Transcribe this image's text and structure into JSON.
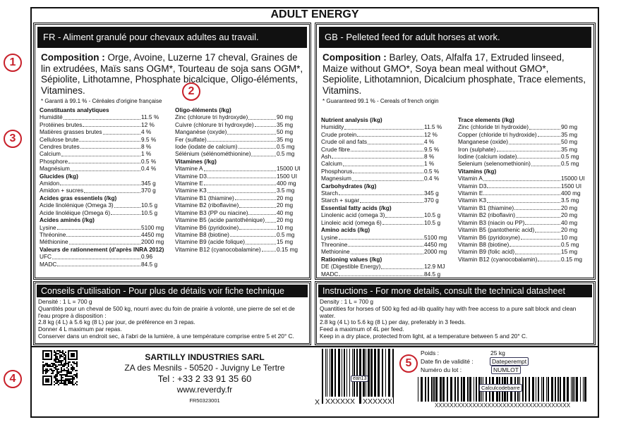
{
  "title": "ADULT ENERGY",
  "fr": {
    "header": "FR - Aliment granulé pour chevaux adultes au travail.",
    "composition_label": "Composition :",
    "composition_text": " Orge, Avoine, Luzerne 17 cheval, Graines de lin extrudées, Maïs sans OGM*, Tourteau de soja sans OGM*, Sépiolite, Lithotamne, Phosphate bicalcique, Oligo-éléments, Vitamines.",
    "footnote": "* Garanti à 99.1 % - Céréales d'origine française",
    "columns": [
      [
        {
          "title": "Constituants analytiques",
          "rows": [
            [
              "Humidité",
              "11.5 %"
            ],
            [
              "Protéines brutes",
              "12 %"
            ],
            [
              "Matières grasses brutes",
              "4 %"
            ],
            [
              "Cellulose brute",
              "9.5 %"
            ],
            [
              "Cendres brutes",
              "8 %"
            ],
            [
              "Calcium",
              "1 %"
            ],
            [
              "Phosphore",
              "0.5 %"
            ],
            [
              "Magnésium",
              "0.4 %"
            ]
          ]
        },
        {
          "title": "Glucides (/kg)",
          "rows": [
            [
              "Amidon",
              "345 g"
            ],
            [
              "Amidon + sucres",
              "370 g"
            ]
          ]
        },
        {
          "title": "Acides gras essentiels (/kg)",
          "rows": [
            [
              "Acide linolénique (Omega 3)",
              "10.5 g"
            ],
            [
              "Acide linoléique (Omega 6)",
              "10.5 g"
            ]
          ]
        },
        {
          "title": "Acides aminés (/kg)",
          "rows": [
            [
              "Lysine",
              "5100 mg"
            ],
            [
              "Thréonine",
              "4450 mg"
            ],
            [
              "Méthionine",
              "2000 mg"
            ]
          ]
        },
        {
          "title": "Valeurs de rationnement (d'après INRA 2012)",
          "rows": [
            [
              "UFC",
              "0.96"
            ],
            [
              "MADC",
              "84.5 g"
            ]
          ]
        }
      ],
      [
        {
          "title": "Oligo-éléments (/kg)",
          "rows": [
            [
              "Zinc (chlorure tri hydroxyde)",
              "90 mg"
            ],
            [
              "Cuivre (chlorure tri hydroxyde)",
              "35 mg"
            ],
            [
              "Manganèse (oxyde)",
              "50 mg"
            ],
            [
              "Fer (sulfate)",
              "35 mg"
            ],
            [
              "Iode (iodate de calcium)",
              "0.5 mg"
            ],
            [
              "Sélénium (sélénométhionine)",
              "0.5 mg"
            ]
          ]
        },
        {
          "title": "Vitamines (/kg)",
          "rows": [
            [
              "Vitamine A",
              "15000 UI"
            ],
            [
              "Vitamine D3",
              "1500 UI"
            ],
            [
              "Vitamine E",
              "400 mg"
            ],
            [
              "Vitamine K3",
              "3.5 mg"
            ],
            [
              "Vitamine B1 (thiamine)",
              "20 mg"
            ],
            [
              "Vitamine B2 (riboflavine)",
              "20 mg"
            ],
            [
              "Vitamine B3 (PP ou niacine)",
              "40 mg"
            ],
            [
              "Vitamine B5 (acide pantothénique)",
              "20 mg"
            ],
            [
              "Vitamine B6 (pyridoxine)",
              "10 mg"
            ],
            [
              "Vitamine B8 (biotine)",
              "0.5 mg"
            ],
            [
              "Vitamine B9 (acide folique)",
              "15 mg"
            ],
            [
              "Vitamine B12 (cyanocobalamine)",
              "0.15 mg"
            ]
          ]
        }
      ]
    ]
  },
  "gb": {
    "header": "GB - Pelleted feed for adult horses at work.",
    "composition_label": "Composition :",
    "composition_text": " Barley, Oats, Alfalfa 17, Extruded linseed, Maize without GMO*, Soya bean meal without GMO*, Sepiolite, Lithotamnion, Dicalcium phosphate, Trace elements, Vitamins.",
    "footnote": "* Guaranteed 99.1 % - Cereals of french origin",
    "columns": [
      [
        {
          "title": "Nutrient analysis (/kg)",
          "rows": [
            [
              "Humidity",
              "11.5 %"
            ],
            [
              "Crude protein",
              "12 %"
            ],
            [
              "Crude oil and fats",
              "4 %"
            ],
            [
              "Crude fibre",
              "9.5 %"
            ],
            [
              "Ash",
              "8 %"
            ],
            [
              "Calcium",
              "1 %"
            ],
            [
              "Phosphorus",
              "0.5 %"
            ],
            [
              "Magnesium",
              "0.4 %"
            ]
          ]
        },
        {
          "title": "Carbohydrates (/kg)",
          "rows": [
            [
              "Starch",
              "345 g"
            ],
            [
              "Starch + sugar",
              "370 g"
            ]
          ]
        },
        {
          "title": "Essential fatty acids (/kg)",
          "rows": [
            [
              "Linolenic acid (omega 3)",
              "10.5 g"
            ],
            [
              "Linoleic acid (omega 6)",
              "10.5 g"
            ]
          ]
        },
        {
          "title": "Amino acids (/kg)",
          "rows": [
            [
              "Lysine",
              "5100 mg"
            ],
            [
              "Threonine",
              "4450 mg"
            ],
            [
              "Methionine",
              "2000 mg"
            ]
          ]
        },
        {
          "title": "Rationing values (/kg)",
          "rows": [
            [
              "DE (Digestible Energy)",
              "12.9 MJ"
            ],
            [
              "MADC",
              "84.5 g"
            ]
          ]
        }
      ],
      [
        {
          "title": "Trace elements (/kg)",
          "rows": [
            [
              "Zinc (chloride tri hydroxide)",
              "90 mg"
            ],
            [
              "Copper (chloride tri hydroxide)",
              "35 mg"
            ],
            [
              "Manganese (oxide)",
              "50 mg"
            ],
            [
              "Iron (sulphate)",
              "35 mg"
            ],
            [
              "Iodine (calcium iodate)",
              "0.5 mg"
            ],
            [
              "Selenium (selenomethionin)",
              "0.5 mg"
            ]
          ]
        },
        {
          "title": "Vitamins (/kg)",
          "rows": [
            [
              "Vitamin A",
              "15000 UI"
            ],
            [
              "Vitamin D3",
              "1500 UI"
            ],
            [
              "Vitamin E",
              "400 mg"
            ],
            [
              "Vitamin K3",
              "3.5 mg"
            ],
            [
              "Vitamin B1 (thiamine)",
              "20 mg"
            ],
            [
              "Vitamin B2 (riboflavin)",
              "20 mg"
            ],
            [
              "Vitamin B3 (niacin ou PP)",
              "40 mg"
            ],
            [
              "Vitamin B5 (pantothenic acid)",
              "20 mg"
            ],
            [
              "Vitamin B6 (pyridoxyne)",
              "10 mg"
            ],
            [
              "Vitamin B8 (biotine)",
              "0.5 mg"
            ],
            [
              "Vitamin B9 (folic acid)",
              "15 mg"
            ],
            [
              "Vitamin B12 (cyanocobalamin)",
              "0.15 mg"
            ]
          ]
        }
      ]
    ]
  },
  "instructions_fr": {
    "header": "Conseils d'utilisation - Pour plus de détails voir fiche technique",
    "lines": [
      "Densité : 1 L = 700 g",
      "Quantités pour un cheval de 500 kg, nourri avec du foin de prairie à volonté, une pierre de sel et de l'eau propre à disposition :",
      "2.8 kg (4 L) à 5.6 kg (8 L) par jour, de préférence en 3 repas.",
      "Donner 4 L maximum par repas.",
      "Conserver dans un endroit sec, à l'abri de la lumière, à une température comprise entre 5 et 20° C."
    ]
  },
  "instructions_gb": {
    "header": "Instructions - For more details, consult the technical datasheet",
    "lines": [
      "Density : 1 L = 700 g",
      "Quantities for horses of 500 kg fed ad-lib quality hay with free access to a pure salt block and clean water.",
      "2.8 kg (4 L) to 5.6 kg (8 L) per day, preferably in 3 feeds.",
      "Feed a maximum of  4L per feed.",
      "Keep in a dry place, protected from light, at a temperature between 5 and 20° C."
    ]
  },
  "company": {
    "name": "SARTILLY INDUSTRIES SARL",
    "address": "ZA des Mesnils - 50520 - Juvigny Le Tertre",
    "tel": "Tel : +33 2 33 91 35 60",
    "website": "www.reverdy.fr",
    "code": "FR50323001"
  },
  "ean": {
    "tag": "ean13",
    "prefix": "X",
    "left": "XXXXXX",
    "right": "XXXXXX"
  },
  "product_info": {
    "weight_label": "Poids :",
    "weight_value": "25 kg",
    "expiry_label": "Date fin de validité :",
    "expiry_value": "Dateperempt",
    "lot_label": "Numéro du lot :",
    "lot_value": "NUMLOT"
  },
  "barcode2": {
    "tag": "Calculcodebarre",
    "text": "XXXXXXXXXXXXXXXXXXXXXXXXXXXXXXXXXXXX"
  },
  "markers": [
    "1",
    "2",
    "3",
    "4",
    "5"
  ],
  "colors": {
    "marker": "#c8202a",
    "header_bg": "#111111"
  }
}
